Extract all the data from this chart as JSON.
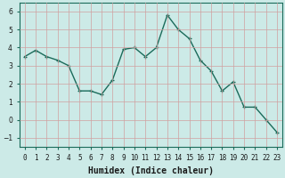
{
  "x": [
    0,
    1,
    2,
    3,
    4,
    5,
    6,
    7,
    8,
    9,
    10,
    11,
    12,
    13,
    14,
    15,
    16,
    17,
    18,
    19,
    20,
    21,
    22,
    23
  ],
  "y": [
    3.5,
    3.85,
    3.5,
    3.3,
    3.0,
    1.6,
    1.6,
    1.4,
    2.2,
    3.9,
    4.0,
    3.5,
    4.0,
    5.8,
    5.0,
    4.5,
    3.3,
    2.7,
    1.6,
    2.1,
    0.7,
    0.7,
    0.0,
    -0.7
  ],
  "line_color": "#1a6b5a",
  "marker": "+",
  "markersize": 3,
  "linewidth": 1.0,
  "bg_color": "#cceae7",
  "grid_color": "#aad4d0",
  "xlabel": "Humidex (Indice chaleur)",
  "xlabel_fontsize": 7,
  "ylim": [
    -1.5,
    6.5
  ],
  "xlim": [
    -0.5,
    23.5
  ],
  "yticks": [
    -1,
    0,
    1,
    2,
    3,
    4,
    5,
    6
  ],
  "xtick_labels": [
    "0",
    "1",
    "2",
    "3",
    "4",
    "5",
    "6",
    "7",
    "8",
    "9",
    "10",
    "11",
    "12",
    "13",
    "14",
    "15",
    "16",
    "17",
    "18",
    "19",
    "20",
    "21",
    "22",
    "23"
  ],
  "tick_fontsize": 5.5,
  "spine_color": "#1a6b5a"
}
